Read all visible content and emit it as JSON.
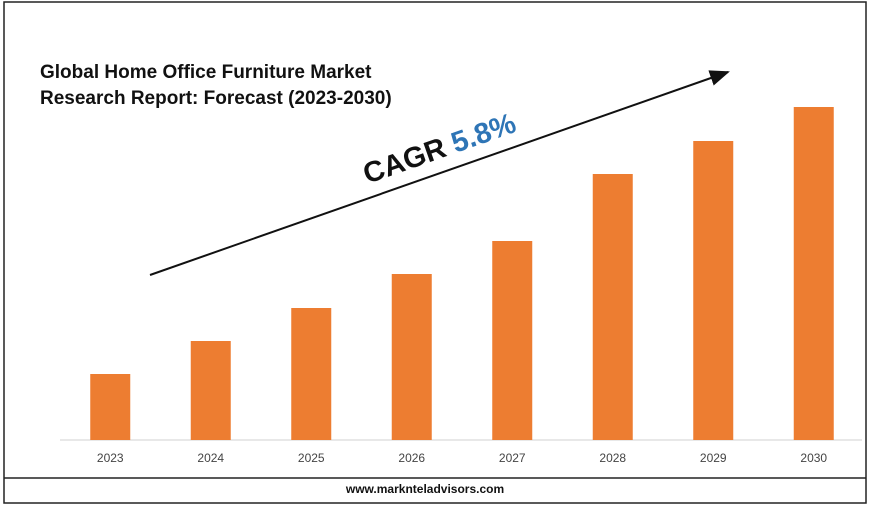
{
  "chart_data": {
    "type": "bar",
    "title": "Global Home Office Furniture Market Research Report: Forecast (2023-2030)",
    "annotation": {
      "label": "CAGR",
      "value": "5.8%"
    },
    "footer": "www.marknteladvisors.com",
    "categories": [
      "2023",
      "2024",
      "2025",
      "2026",
      "2027",
      "2028",
      "2029",
      "2030"
    ],
    "values": [
      66,
      99,
      132,
      166,
      199,
      266,
      299,
      333
    ],
    "color": "#ed7d31",
    "ylim": [
      0,
      340
    ]
  }
}
